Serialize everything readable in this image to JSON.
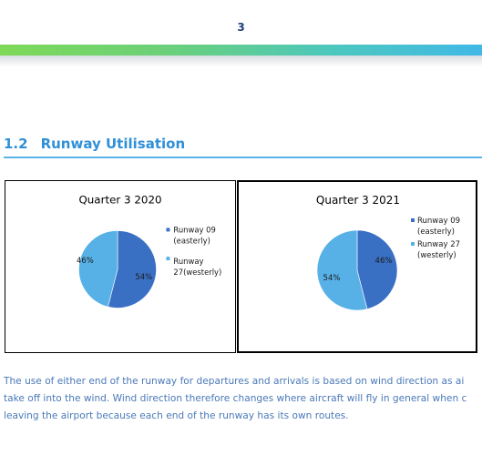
{
  "page_number": "3",
  "section": {
    "number": "1.2",
    "title": "Runway Utilisation"
  },
  "colors": {
    "easterly": "#3A70C4",
    "westerly": "#58B1E6",
    "heading": "#2F8FD8",
    "body_text": "#4A79B8"
  },
  "chart_data": [
    {
      "type": "pie",
      "title": "Quarter 3 2020",
      "slices": [
        {
          "label_lines": [
            "Runway 09",
            "(easterly)"
          ],
          "value": 54,
          "value_label": "54%",
          "color": "#3A70C4"
        },
        {
          "label_lines": [
            "Runway",
            "27(westerly)"
          ],
          "value": 46,
          "value_label": "46%",
          "color": "#58B1E6"
        }
      ],
      "legend_position": "right"
    },
    {
      "type": "pie",
      "title": "Quarter 3 2021",
      "slices": [
        {
          "label_lines": [
            "Runway 09",
            "(easterly)"
          ],
          "value": 46,
          "value_label": "46%",
          "color": "#3A70C4"
        },
        {
          "label_lines": [
            "Runway 27",
            "(westerly)"
          ],
          "value": 54,
          "value_label": "54%",
          "color": "#58B1E6"
        }
      ],
      "legend_position": "right"
    }
  ],
  "body_lines": [
    "The use of either end of the runway for departures and arrivals is based on wind direction as ai",
    "take off into the wind. Wind direction therefore changes where aircraft will fly in general when c",
    "leaving the airport because each end of the runway has its own routes."
  ]
}
